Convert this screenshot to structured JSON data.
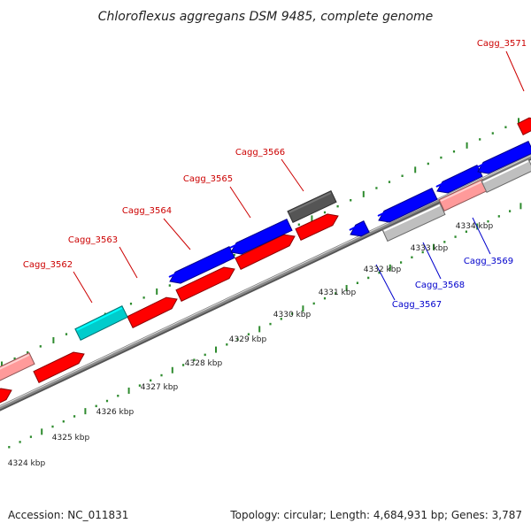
{
  "map": {
    "title": "Chloroflexus aggregans DSM 9485, complete genome",
    "footer": {
      "accession": "Accession: NC_011831",
      "summary": "Topology: circular; Length: 4,684,931 bp; Genes: 3,787"
    },
    "colors": {
      "background": "#ffffff",
      "forward_cds": "#ff0000",
      "reverse_cds": "#0000ff",
      "pseudogene": "#ff9a9a",
      "other_gene": "#00cccc",
      "dark_gene": "#555555",
      "light_gene": "#bfbfbf",
      "backbone": "#8a8a8a",
      "ticks": "#2e8b2e",
      "label_forward": "#cc0000",
      "label_reverse": "#0000cc"
    },
    "tick_labels": [
      "4324 kbp",
      "4325 kbp",
      "4326 kbp",
      "4327 kbp",
      "4328 kbp",
      "4329 kbp",
      "4330 kbp",
      "4331 kbp",
      "4332 kbp",
      "4333 kbp",
      "4334 kbp"
    ],
    "forward_labels": [
      "Cagg_3562",
      "Cagg_3563",
      "Cagg_3564",
      "Cagg_3565",
      "Cagg_3566",
      "Cagg_3571"
    ],
    "reverse_labels": [
      "Cagg_3567",
      "Cagg_3568",
      "Cagg_3569"
    ]
  }
}
